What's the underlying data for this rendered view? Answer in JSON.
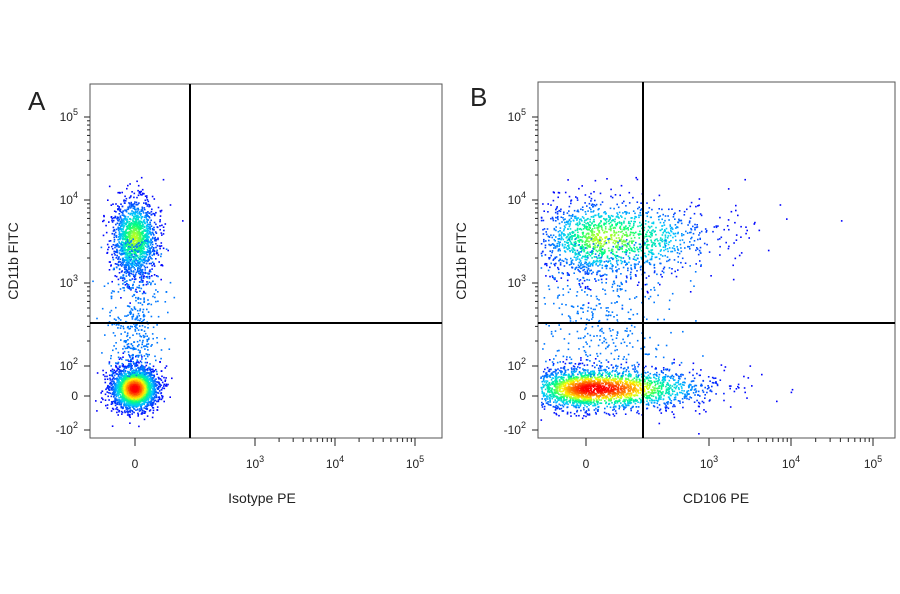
{
  "chart_data": [
    {
      "type": "scatter",
      "panel_label": "A",
      "xlabel": "Isotype PE",
      "ylabel": "CD11b FITC",
      "x_scale": "biexponential",
      "y_scale": "biexponential",
      "x_ticks": [
        {
          "value": 0,
          "base": "0",
          "exp": ""
        },
        {
          "value": 1000,
          "base": "10",
          "exp": "3"
        },
        {
          "value": 10000,
          "base": "10",
          "exp": "4"
        },
        {
          "value": 100000,
          "base": "10",
          "exp": "5"
        }
      ],
      "y_ticks": [
        {
          "value": -100,
          "base": "-10",
          "exp": "2"
        },
        {
          "value": 0,
          "base": "0",
          "exp": ""
        },
        {
          "value": 100,
          "base": "10",
          "exp": "2"
        },
        {
          "value": 1000,
          "base": "10",
          "exp": "3"
        },
        {
          "value": 10000,
          "base": "10",
          "exp": "4"
        },
        {
          "value": 100000,
          "base": "10",
          "exp": "5"
        }
      ],
      "quadrant_gate": {
        "x": 300,
        "y": 300
      },
      "populations": [
        {
          "name": "CD11b- cluster",
          "center": [
            -10,
            0
          ],
          "spread_x": "tight",
          "spread_y": "tight",
          "density": "high"
        },
        {
          "name": "CD11b+ cluster",
          "center": [
            -10,
            3500
          ],
          "spread_x": "tight",
          "spread_y": "moderate",
          "density": "moderate"
        }
      ],
      "colormap": [
        "#0000ff",
        "#00c8ff",
        "#00ff80",
        "#ffff00",
        "#ff8000",
        "#ff0000"
      ]
    },
    {
      "type": "scatter",
      "panel_label": "B",
      "xlabel": "CD106 PE",
      "ylabel": "CD11b FITC",
      "x_scale": "biexponential",
      "y_scale": "biexponential",
      "x_ticks": [
        {
          "value": 0,
          "base": "0",
          "exp": ""
        },
        {
          "value": 1000,
          "base": "10",
          "exp": "3"
        },
        {
          "value": 10000,
          "base": "10",
          "exp": "4"
        },
        {
          "value": 100000,
          "base": "10",
          "exp": "5"
        }
      ],
      "y_ticks": [
        {
          "value": -100,
          "base": "-10",
          "exp": "2"
        },
        {
          "value": 0,
          "base": "0",
          "exp": ""
        },
        {
          "value": 100,
          "base": "10",
          "exp": "2"
        },
        {
          "value": 1000,
          "base": "10",
          "exp": "3"
        },
        {
          "value": 10000,
          "base": "10",
          "exp": "4"
        },
        {
          "value": 100000,
          "base": "10",
          "exp": "5"
        }
      ],
      "quadrant_gate": {
        "x": 300,
        "y": 300
      },
      "populations": [
        {
          "name": "CD11b- cluster",
          "center": [
            20,
            0
          ],
          "spread_x": "wide",
          "spread_y": "tight",
          "density": "high"
        },
        {
          "name": "CD11b+ cluster",
          "center": [
            60,
            3500
          ],
          "spread_x": "wide",
          "spread_y": "moderate",
          "density": "moderate"
        }
      ],
      "colormap": [
        "#0000ff",
        "#00c8ff",
        "#00ff80",
        "#ffff00",
        "#ff8000",
        "#ff0000"
      ]
    }
  ]
}
